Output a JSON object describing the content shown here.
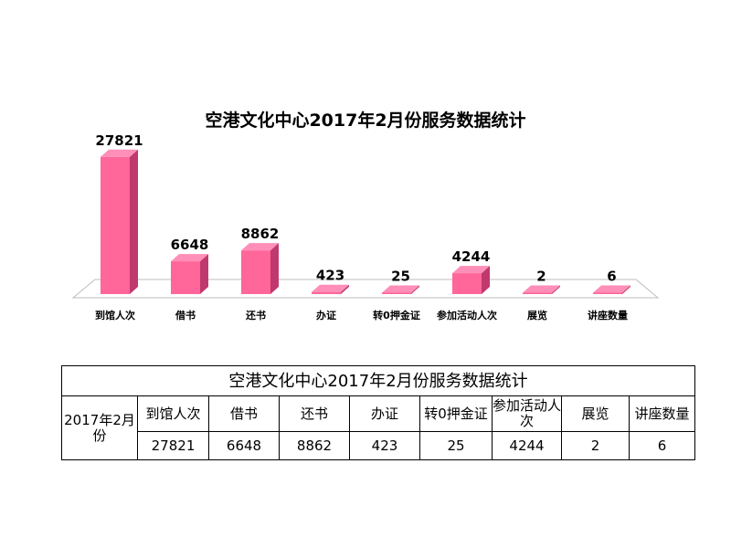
{
  "chart_data": {
    "type": "bar",
    "title": "空港文化中心2017年2月份服务数据统计",
    "categories": [
      "到馆人次",
      "借书",
      "还书",
      "办证",
      "转0押金证",
      "参加活动人次",
      "展览",
      "讲座数量"
    ],
    "values": [
      27821,
      6648,
      8862,
      423,
      25,
      4244,
      2,
      6
    ],
    "data_labels": [
      "27821",
      "6648",
      "8862",
      "423",
      "25",
      "4244",
      "2",
      "6"
    ],
    "ylim": [
      0,
      30000
    ],
    "grid": false,
    "legend": "none",
    "bar_color": "#ff6699",
    "bar_side_color": "#c0396e",
    "bar_top_color": "#ff8fb8"
  },
  "table": {
    "title": "空港文化中心2017年2月份服务数据统计",
    "row_header": "2017年2月份",
    "columns": [
      "到馆人次",
      "借书",
      "还书",
      "办证",
      "转0押金证",
      "参加活动人次",
      "展览",
      "讲座数量"
    ],
    "values": [
      "27821",
      "6648",
      "8862",
      "423",
      "25",
      "4244",
      "2",
      "6"
    ]
  }
}
